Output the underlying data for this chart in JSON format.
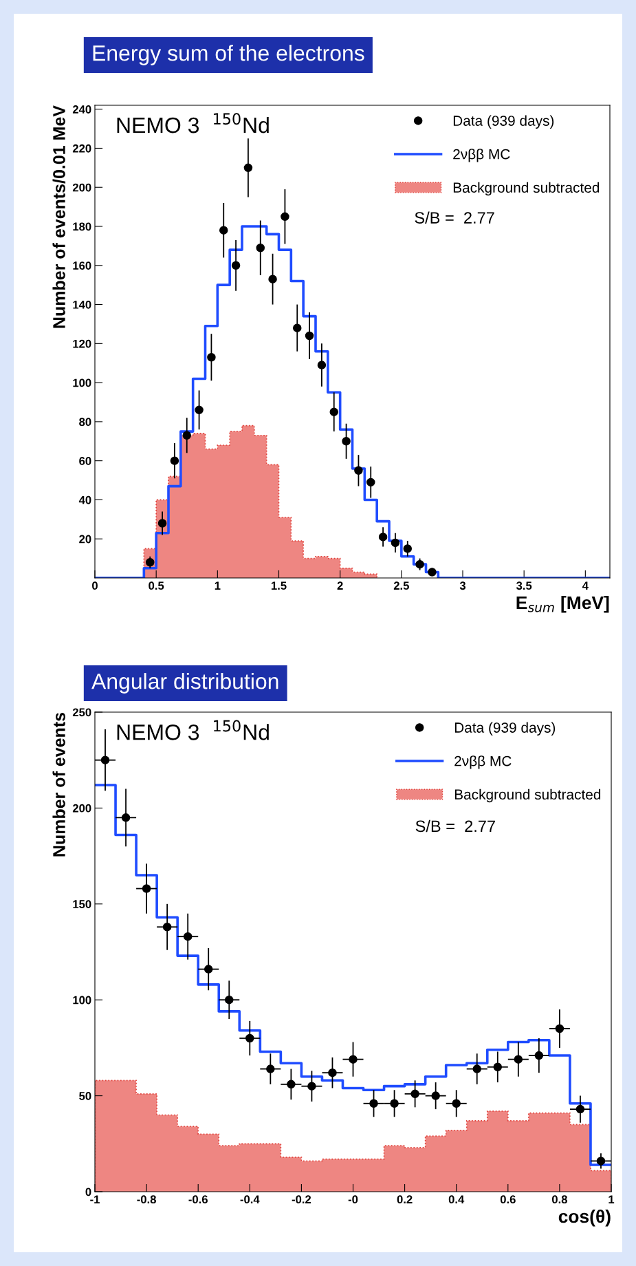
{
  "chart_data": [
    {
      "type": "histogram",
      "title": "Energy sum of the electrons",
      "xlabel": "E$_{sum}$ [MeV]",
      "ylabel": "Number of events/0.01 MeV",
      "xlim": [
        0,
        4.2
      ],
      "xticks": [
        0,
        0.5,
        1,
        1.5,
        2,
        2.5,
        3,
        3.5,
        4
      ],
      "ylim": [
        0,
        242
      ],
      "yticks": [
        20,
        40,
        60,
        80,
        100,
        120,
        140,
        160,
        180,
        200,
        220,
        240
      ],
      "legend": "top right",
      "annotations": [
        "NEMO 3  $^{150}$Nd",
        "S/B =  2.77"
      ],
      "series": [
        {
          "type": "histogram",
          "name": "Background subtracted",
          "color": "#ee8682",
          "bins": [
            0.4,
            0.5,
            0.6,
            0.7,
            0.8,
            0.9,
            1.0,
            1.1,
            1.2,
            1.3,
            1.4,
            1.5,
            1.6,
            1.7,
            1.8,
            1.9,
            2.0,
            2.1,
            2.2,
            2.3
          ],
          "values": [
            15,
            40,
            52,
            73,
            74,
            66,
            68,
            75,
            78,
            73,
            58,
            31,
            19,
            10,
            11,
            10,
            5,
            3,
            2
          ]
        },
        {
          "type": "step",
          "name": "2νββ MC",
          "color": "#1f4cff",
          "x": [
            0,
            0.4,
            0.5,
            0.6,
            0.7,
            0.8,
            0.9,
            1.0,
            1.1,
            1.2,
            1.3,
            1.4,
            1.5,
            1.6,
            1.7,
            1.8,
            1.9,
            2.0,
            2.1,
            2.2,
            2.3,
            2.4,
            2.5,
            2.6,
            2.7,
            2.8,
            4.2
          ],
          "values": [
            0,
            5,
            23,
            47,
            75,
            102,
            129,
            150,
            168,
            180,
            180,
            176,
            168,
            152,
            134,
            116,
            95,
            76,
            56,
            40,
            29,
            19,
            11,
            7,
            3,
            0,
            0
          ]
        },
        {
          "type": "scatter",
          "name": "Data (939 days)",
          "color": "#000000",
          "marker": "circle",
          "x": [
            0.45,
            0.55,
            0.65,
            0.75,
            0.85,
            0.95,
            1.05,
            1.15,
            1.25,
            1.35,
            1.45,
            1.55,
            1.65,
            1.75,
            1.85,
            1.95,
            2.05,
            2.15,
            2.25,
            2.35,
            2.45,
            2.55,
            2.65,
            2.75
          ],
          "values": [
            8,
            28,
            60,
            73,
            86,
            113,
            178,
            160,
            210,
            169,
            153,
            185,
            128,
            124,
            109,
            85,
            70,
            55,
            49,
            21,
            18,
            15,
            7,
            3
          ],
          "errors": [
            3,
            6,
            9,
            9,
            10,
            12,
            14,
            13,
            15,
            14,
            13,
            14,
            12,
            12,
            11,
            10,
            9,
            8,
            8,
            5,
            5,
            4,
            3,
            2
          ]
        }
      ]
    },
    {
      "type": "histogram",
      "title": "Angular distribution",
      "xlabel": "cos(θ)",
      "ylabel": "Number of events",
      "xlim": [
        -1,
        1
      ],
      "xticks": [
        -1,
        -0.8,
        -0.6,
        -0.4,
        -0.2,
        {
          "value": 0,
          "label": "-0"
        },
        0.2,
        0.4,
        0.6,
        0.8,
        1
      ],
      "ylim": [
        0,
        250
      ],
      "yticks": [
        0,
        50,
        100,
        150,
        200,
        250
      ],
      "legend": "top right",
      "annotations": [
        "NEMO 3  $^{150}$Nd",
        "S/B =  2.77"
      ],
      "series": [
        {
          "type": "histogram",
          "name": "Background subtracted",
          "color": "#ee8682",
          "bins": [
            -1,
            -0.92,
            -0.84,
            -0.76,
            -0.68,
            -0.6,
            -0.52,
            -0.44,
            -0.36,
            -0.28,
            -0.2,
            -0.12,
            -0.04,
            0.04,
            0.12,
            0.2,
            0.28,
            0.36,
            0.44,
            0.52,
            0.6,
            0.68,
            0.76,
            0.84,
            0.92,
            1
          ],
          "values": [
            58,
            58,
            51,
            40,
            34,
            30,
            24,
            25,
            25,
            18,
            16,
            17,
            17,
            17,
            24,
            23,
            29,
            32,
            37,
            42,
            37,
            41,
            41,
            35,
            11
          ]
        },
        {
          "type": "step",
          "name": "2νββ MC",
          "color": "#1f4cff",
          "x": [
            -1,
            -0.92,
            -0.84,
            -0.76,
            -0.68,
            -0.6,
            -0.52,
            -0.44,
            -0.36,
            -0.28,
            -0.2,
            -0.12,
            -0.04,
            0.04,
            0.12,
            0.2,
            0.28,
            0.36,
            0.44,
            0.52,
            0.6,
            0.68,
            0.76,
            0.84,
            0.92,
            1
          ],
          "values": [
            212,
            186,
            165,
            143,
            123,
            108,
            94,
            84,
            73,
            67,
            60,
            58,
            54,
            53,
            55,
            56,
            60,
            66,
            67,
            74,
            78,
            79,
            71,
            46,
            14,
            14
          ]
        },
        {
          "type": "scatter",
          "name": "Data (939 days)",
          "color": "#000000",
          "marker": "circle",
          "x": [
            -0.96,
            -0.88,
            -0.8,
            -0.72,
            -0.64,
            -0.56,
            -0.48,
            -0.4,
            -0.32,
            -0.24,
            -0.16,
            -0.08,
            0.0,
            0.08,
            0.16,
            0.24,
            0.32,
            0.4,
            0.48,
            0.56,
            0.64,
            0.72,
            0.8,
            0.88,
            0.96
          ],
          "values": [
            225,
            195,
            158,
            138,
            133,
            116,
            100,
            80,
            64,
            56,
            55,
            62,
            69,
            46,
            46,
            51,
            50,
            46,
            64,
            65,
            69,
            71,
            85,
            43,
            16
          ],
          "errors": [
            16,
            15,
            13,
            12,
            12,
            11,
            10,
            9,
            8,
            8,
            8,
            8,
            9,
            7,
            7,
            7,
            7,
            7,
            8,
            8,
            9,
            9,
            10,
            7,
            4
          ],
          "xerrors": [
            0.04,
            0.04,
            0.04,
            0.04,
            0.04,
            0.04,
            0.04,
            0.04,
            0.04,
            0.04,
            0.04,
            0.04,
            0.04,
            0.04,
            0.04,
            0.04,
            0.04,
            0.04,
            0.04,
            0.04,
            0.04,
            0.04,
            0.04,
            0.04,
            0.04
          ]
        }
      ]
    }
  ]
}
